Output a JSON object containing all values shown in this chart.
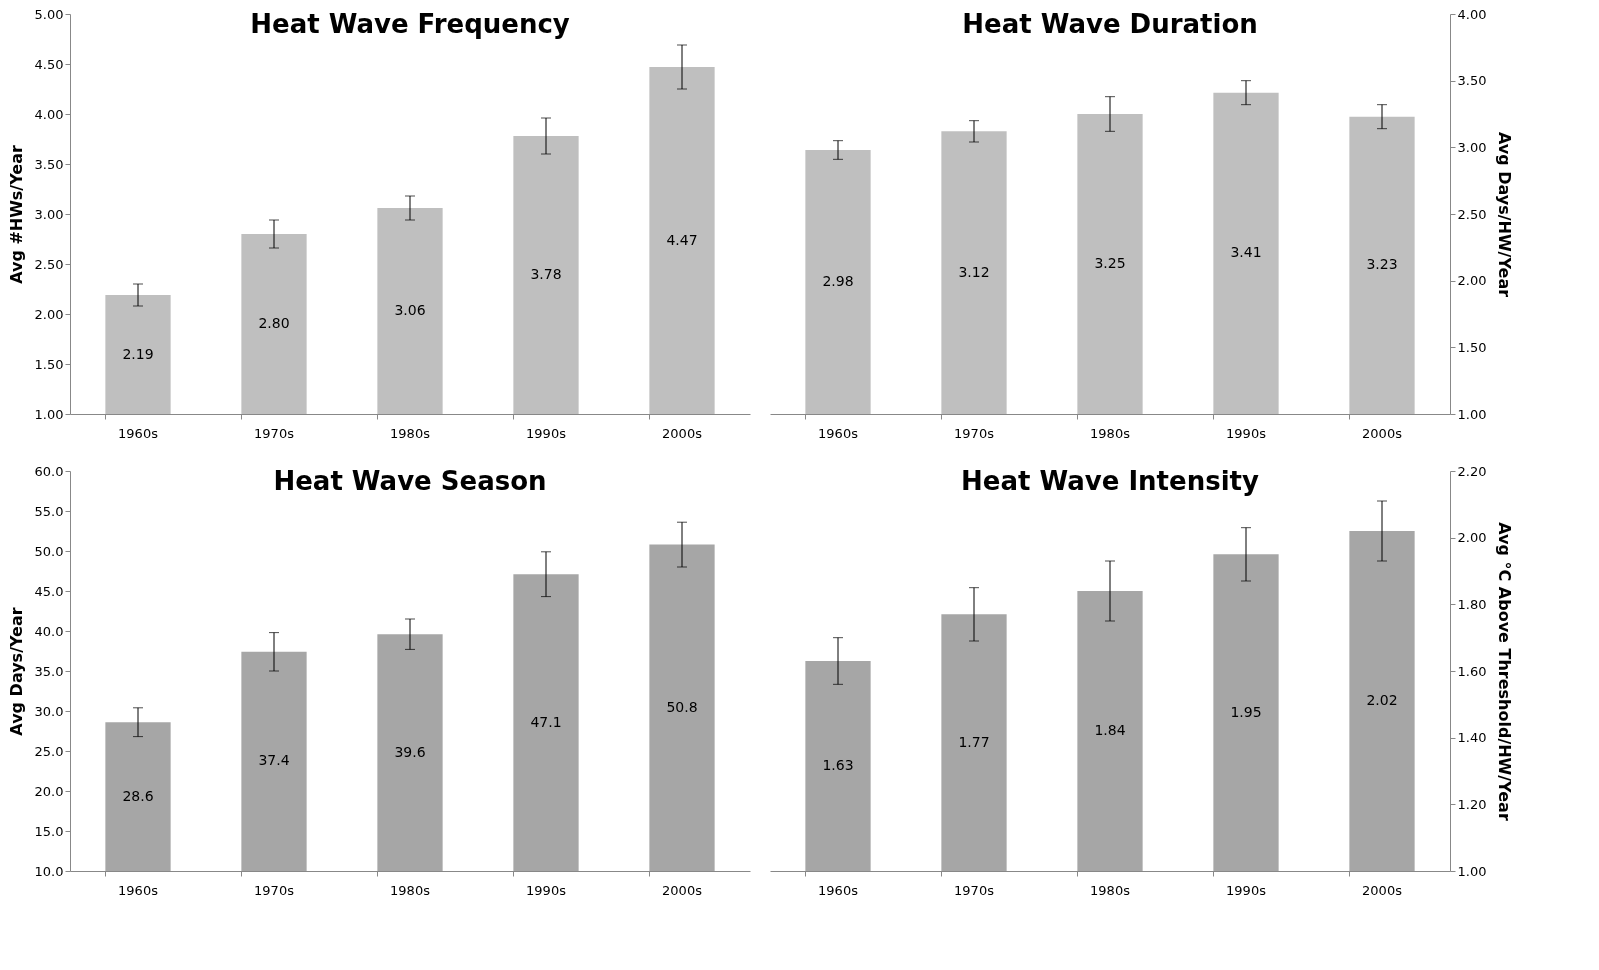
{
  "chart_data": [
    {
      "type": "bar",
      "title": "Heat Wave Frequency",
      "ylabel": "Avg #HWs/Year",
      "categories": [
        "1960s",
        "1970s",
        "1980s",
        "1990s",
        "2000s"
      ],
      "series": [
        {
          "color": "#bfbfbf",
          "values": [
            2.19,
            2.8,
            3.06,
            3.78,
            4.47
          ],
          "errors": [
            0.11,
            0.14,
            0.12,
            0.18,
            0.22
          ],
          "value_labels": [
            "2.19",
            "2.80",
            "3.06",
            "3.78",
            "4.47"
          ]
        }
      ],
      "ylim": [
        1,
        5
      ],
      "yticks": [
        {
          "value": 1,
          "label": "1.00"
        },
        {
          "value": 1.5,
          "label": "1.50"
        },
        {
          "value": 2,
          "label": "2.00"
        },
        {
          "value": 2.5,
          "label": "2.50"
        },
        {
          "value": 3,
          "label": "3.00"
        },
        {
          "value": 3.5,
          "label": "3.50"
        },
        {
          "value": 4,
          "label": "4.00"
        },
        {
          "value": 4.5,
          "label": "4.50"
        },
        {
          "value": 5,
          "label": "5.00"
        }
      ],
      "grid": false
    },
    {
      "type": "bar",
      "title": "Heat Wave Duration",
      "y2label": "Avg Days/HW/Year",
      "categories": [
        "1960s",
        "1970s",
        "1980s",
        "1990s",
        "2000s"
      ],
      "series": [
        {
          "color": "#bfbfbf",
          "axis": "y2",
          "values": [
            2.98,
            3.12,
            3.25,
            3.41,
            3.23
          ],
          "errors": [
            0.07,
            0.08,
            0.13,
            0.09,
            0.09
          ],
          "value_labels": [
            "2.98",
            "3.12",
            "3.25",
            "3.41",
            "3.23"
          ]
        }
      ],
      "y2lim": [
        1,
        4
      ],
      "y2ticks": [
        {
          "value": 1,
          "label": "1.00"
        },
        {
          "value": 1.5,
          "label": "1.50"
        },
        {
          "value": 2,
          "label": "2.00"
        },
        {
          "value": 2.5,
          "label": "2.50"
        },
        {
          "value": 3,
          "label": "3.00"
        },
        {
          "value": 3.5,
          "label": "3.50"
        },
        {
          "value": 4,
          "label": "4.00"
        }
      ],
      "grid": false
    },
    {
      "type": "bar",
      "title": "Heat Wave Season",
      "ylabel": "Avg Days/Year",
      "categories": [
        "1960s",
        "1970s",
        "1980s",
        "1990s",
        "2000s"
      ],
      "series": [
        {
          "color": "#a6a6a6",
          "values": [
            28.6,
            37.4,
            39.6,
            47.1,
            50.8
          ],
          "errors": [
            1.8,
            2.4,
            1.9,
            2.8,
            2.8
          ],
          "value_labels": [
            "28.6",
            "37.4",
            "39.6",
            "47.1",
            "50.8"
          ]
        }
      ],
      "ylim": [
        10,
        60
      ],
      "yticks": [
        {
          "value": 10,
          "label": "10.0"
        },
        {
          "value": 15,
          "label": "15.0"
        },
        {
          "value": 20,
          "label": "20.0"
        },
        {
          "value": 25,
          "label": "25.0"
        },
        {
          "value": 30,
          "label": "30.0"
        },
        {
          "value": 35,
          "label": "35.0"
        },
        {
          "value": 40,
          "label": "40.0"
        },
        {
          "value": 45,
          "label": "45.0"
        },
        {
          "value": 50,
          "label": "50.0"
        },
        {
          "value": 55,
          "label": "55.0"
        },
        {
          "value": 60,
          "label": "60.0"
        }
      ],
      "grid": false
    },
    {
      "type": "bar",
      "title": "Heat Wave Intensity",
      "y2label": "Avg °C Above Threshold/HW/Year",
      "categories": [
        "1960s",
        "1970s",
        "1980s",
        "1990s",
        "2000s"
      ],
      "series": [
        {
          "color": "#a6a6a6",
          "axis": "y2",
          "values": [
            1.63,
            1.77,
            1.84,
            1.95,
            2.02
          ],
          "errors": [
            0.07,
            0.08,
            0.09,
            0.08,
            0.09
          ],
          "value_labels": [
            "1.63",
            "1.77",
            "1.84",
            "1.95",
            "2.02"
          ]
        }
      ],
      "y2lim": [
        1,
        2.2
      ],
      "y2ticks": [
        {
          "value": 1,
          "label": "1.00"
        },
        {
          "value": 1.2,
          "label": "1.20"
        },
        {
          "value": 1.4,
          "label": "1.40"
        },
        {
          "value": 1.6,
          "label": "1.60"
        },
        {
          "value": 1.8,
          "label": "1.80"
        },
        {
          "value": 2,
          "label": "2.00"
        },
        {
          "value": 2.2,
          "label": "2.20"
        }
      ],
      "grid": false
    }
  ]
}
